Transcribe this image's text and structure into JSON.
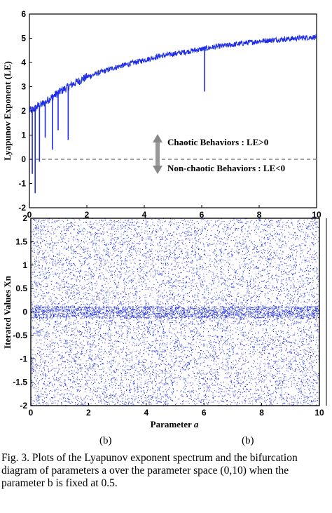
{
  "chart_data": [
    {
      "type": "line",
      "title": "",
      "xlabel": "",
      "ylabel": "Lyapunov Exponent (LE)",
      "xlim": [
        0,
        10
      ],
      "ylim": [
        -2,
        6
      ],
      "xticks": [
        "0",
        "2",
        "4",
        "6",
        "8",
        "10"
      ],
      "yticks": [
        "-2",
        "-1",
        "0",
        "1",
        "2",
        "3",
        "4",
        "5",
        "6"
      ],
      "series": [
        {
          "color": "#1f2ee6",
          "x": [
            0.0,
            0.1,
            0.2,
            0.3,
            0.5,
            0.7,
            1.0,
            1.5,
            2.0,
            2.5,
            3.0,
            3.5,
            4.0,
            4.5,
            5.0,
            5.5,
            6.0,
            6.5,
            7.0,
            7.5,
            8.0,
            8.5,
            9.0,
            9.5,
            10.0
          ],
          "y": [
            2.0,
            2.05,
            2.1,
            2.2,
            2.3,
            2.5,
            2.75,
            3.1,
            3.4,
            3.6,
            3.8,
            3.95,
            4.1,
            4.25,
            4.35,
            4.45,
            4.55,
            4.65,
            4.72,
            4.8,
            4.88,
            4.93,
            4.97,
            5.02,
            5.05
          ]
        }
      ],
      "dips": [
        {
          "x": 0.1,
          "y": -0.6
        },
        {
          "x": 0.2,
          "y": -1.4
        },
        {
          "x": 0.35,
          "y": -0.1
        },
        {
          "x": 0.55,
          "y": 0.9
        },
        {
          "x": 0.8,
          "y": 0.4
        },
        {
          "x": 1.0,
          "y": 1.2
        },
        {
          "x": 1.35,
          "y": 0.8
        },
        {
          "x": 6.1,
          "y": 2.8
        }
      ],
      "reference_line": {
        "y": 0,
        "style": "dashed",
        "color": "#808080"
      },
      "annotations": [
        "Chaotic Behaviors : LE>0",
        "Non-chaotic Behaviors : LE<0"
      ]
    },
    {
      "type": "scatter",
      "title": "",
      "xlabel": "Parameter a",
      "ylabel": "Iterated Values Xn",
      "xlim": [
        0,
        10
      ],
      "ylim": [
        -2,
        2
      ],
      "xticks": [
        "0",
        "2",
        "4",
        "6",
        "8",
        "10"
      ],
      "yticks": [
        "-2",
        "-1.5",
        "-1",
        "-0.5",
        "0",
        "0.5",
        "1",
        "1.5",
        "2"
      ],
      "color": "#1f2ee6",
      "points_description": "dense noise filling [-2,2] with concentration near 0"
    }
  ],
  "xlabel_parts": {
    "text": "Parameter ",
    "italic": "a"
  },
  "subcaptions": [
    "(b)",
    "(b)"
  ],
  "caption": "Fig. 3. Plots of the Lyapunov exponent spectrum and the bifurcation diagram of  parameters a over the parameter space (0,10) when the parameter b is fixed at 0.5."
}
